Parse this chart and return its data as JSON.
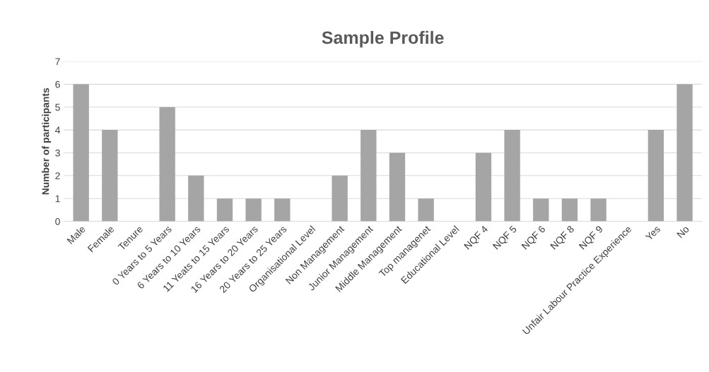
{
  "chart_data": {
    "type": "bar",
    "title": "Sample Profile",
    "ylabel": "Number of participants",
    "categories": [
      "Male",
      "Female",
      "Tenure",
      "0 Years to 5 Years",
      "6 Years to 10 Years",
      "11 Yeats to 15 Years",
      "16 Years to 20 Years",
      "20 Years to 25 Years",
      "Organisational Level",
      "Non Management",
      "Junior Management",
      "Middle Management",
      "Top managenet",
      "Educational Level",
      "NQF 4",
      "NQF 5",
      "NQF 6",
      "NQF 8",
      "NQF 9",
      "Unfair Labour Practice Experience",
      "Yes",
      "No"
    ],
    "values": [
      6,
      4,
      0,
      5,
      2,
      1,
      1,
      1,
      0,
      2,
      4,
      3,
      1,
      0,
      3,
      4,
      1,
      1,
      1,
      0,
      4,
      6
    ],
    "color": "#a5a5a5",
    "ylim": [
      0,
      7
    ],
    "yticks": [
      0,
      1,
      2,
      3,
      4,
      5,
      6,
      7
    ],
    "grid": "y",
    "legend": false
  }
}
